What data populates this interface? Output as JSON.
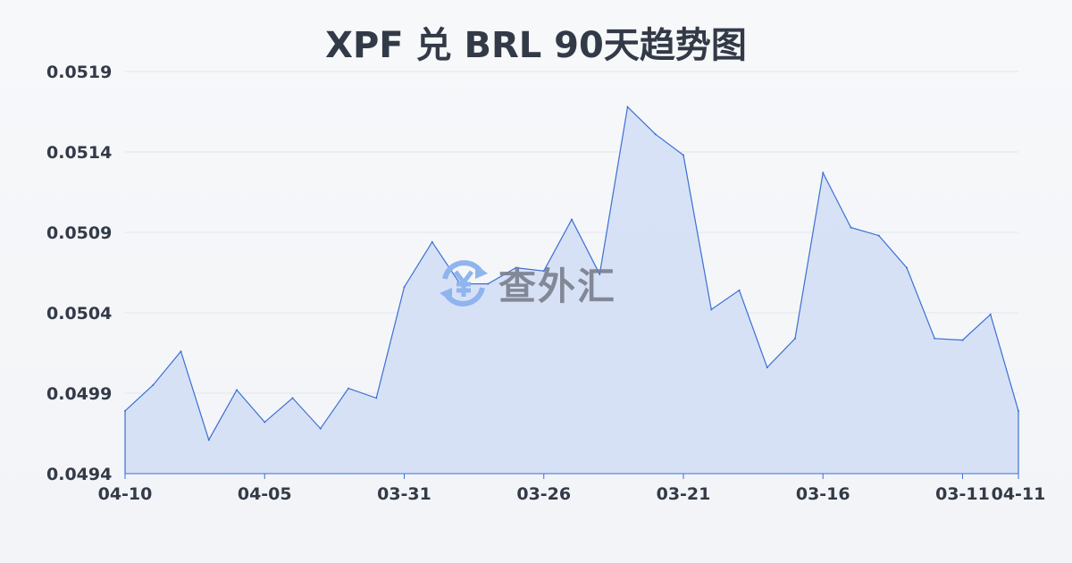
{
  "chart_data": {
    "type": "area",
    "title": "XPF 兑 BRL 90天趋势图",
    "xlabel": "",
    "ylabel": "",
    "ylim": [
      0.0494,
      0.0519
    ],
    "y_ticks": [
      "0.0519",
      "0.0514",
      "0.0509",
      "0.0504",
      "0.0499",
      "0.0494"
    ],
    "x_tick_labels": [
      "04-10",
      "",
      "",
      "",
      "",
      "04-05",
      "",
      "",
      "",
      "",
      "03-31",
      "",
      "",
      "",
      "",
      "03-26",
      "",
      "",
      "",
      "",
      "03-21",
      "",
      "",
      "",
      "",
      "03-16",
      "",
      "",
      "",
      "",
      "03-11",
      "",
      "04-11"
    ],
    "values": [
      0.04979,
      0.04995,
      0.05016,
      0.04961,
      0.04992,
      0.04972,
      0.04987,
      0.04968,
      0.04993,
      0.04987,
      0.05056,
      0.05084,
      0.05058,
      0.05058,
      0.05068,
      0.05066,
      0.05098,
      0.05064,
      0.05168,
      0.05151,
      0.05138,
      0.05042,
      0.05054,
      0.05006,
      0.05024,
      0.05127,
      0.05093,
      0.05088,
      0.05068,
      0.05024,
      0.05023,
      0.05039,
      0.04979
    ],
    "grid": true,
    "legend": "none",
    "colors": {
      "line": "#3b6fd4",
      "fill": "#d4dff5",
      "grid": "#e2e5ea",
      "text": "#333a47"
    }
  },
  "watermark": {
    "text": "查外汇",
    "icon": "currency-exchange-yen-icon"
  }
}
